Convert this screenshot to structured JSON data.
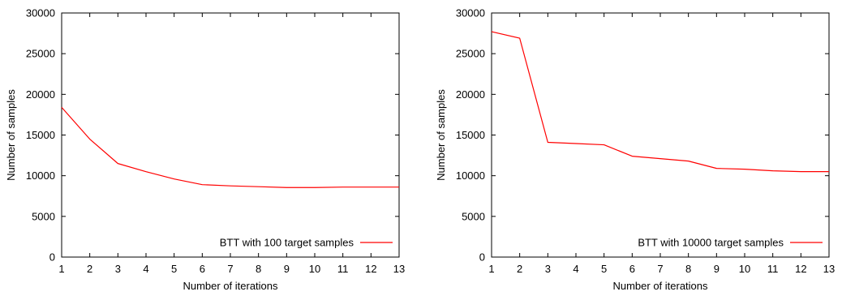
{
  "chart_data": [
    {
      "type": "line",
      "xlabel": "Number of iterations",
      "ylabel": "Number of samples",
      "xlim": [
        1,
        13
      ],
      "ylim": [
        0,
        30000
      ],
      "xticks": [
        1,
        2,
        3,
        4,
        5,
        6,
        7,
        8,
        9,
        10,
        11,
        12,
        13
      ],
      "yticks": [
        0,
        5000,
        10000,
        15000,
        20000,
        25000,
        30000
      ],
      "grid": false,
      "legend_position": "bottom-right",
      "series": [
        {
          "name": "BTT with 100 target samples",
          "color": "#ff0000",
          "x": [
            1,
            2,
            3,
            4,
            5,
            6,
            7,
            8,
            9,
            10,
            11,
            12,
            13
          ],
          "y": [
            18400,
            14500,
            11500,
            10500,
            9600,
            8900,
            8750,
            8650,
            8550,
            8550,
            8600,
            8600,
            8600
          ]
        }
      ]
    },
    {
      "type": "line",
      "xlabel": "Number of iterations",
      "ylabel": "Number of samples",
      "xlim": [
        1,
        13
      ],
      "ylim": [
        0,
        30000
      ],
      "xticks": [
        1,
        2,
        3,
        4,
        5,
        6,
        7,
        8,
        9,
        10,
        11,
        12,
        13
      ],
      "yticks": [
        0,
        5000,
        10000,
        15000,
        20000,
        25000,
        30000
      ],
      "grid": false,
      "legend_position": "bottom-right",
      "series": [
        {
          "name": "BTT with 10000 target samples",
          "color": "#ff0000",
          "x": [
            1,
            2,
            3,
            4,
            5,
            6,
            7,
            8,
            9,
            10,
            11,
            12,
            13
          ],
          "y": [
            27700,
            26900,
            14100,
            13950,
            13800,
            12400,
            12100,
            11800,
            10900,
            10800,
            10600,
            10500,
            10500
          ]
        }
      ]
    }
  ]
}
